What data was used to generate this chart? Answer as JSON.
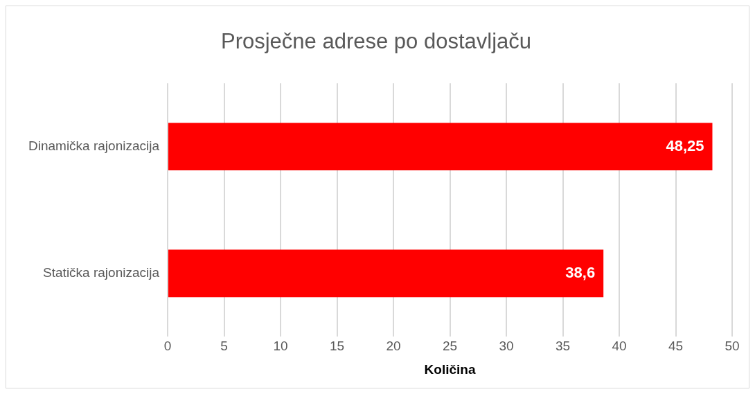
{
  "chart_data": {
    "type": "bar",
    "orientation": "horizontal",
    "title": "Prosječne adrese po dostavljaču",
    "xlabel": "Količina",
    "categories": [
      "Dinamička rajonizacija",
      "Statička rajonizacija"
    ],
    "values": [
      48.25,
      38.6
    ],
    "value_labels": [
      "48,25",
      "38,6"
    ],
    "color": "#ff0000",
    "xlim": [
      0,
      50
    ],
    "xticks": [
      0,
      5,
      10,
      15,
      20,
      25,
      30,
      35,
      40,
      45,
      50
    ],
    "grid": "x",
    "legend": false
  }
}
